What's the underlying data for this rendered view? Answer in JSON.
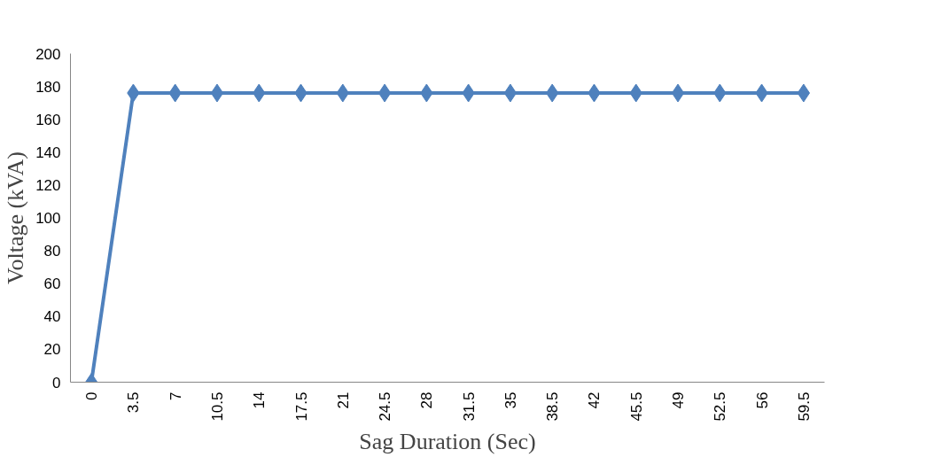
{
  "chart_data": {
    "type": "line",
    "xlabel": "Sag Duration (Sec)",
    "ylabel": "Voltage (kVA)",
    "categories": [
      "0",
      "3.5",
      "7",
      "10.5",
      "14",
      "17.5",
      "21",
      "24.5",
      "28",
      "31.5",
      "35",
      "38.5",
      "42",
      "45.5",
      "49",
      "52.5",
      "56",
      "59.5"
    ],
    "series": [
      {
        "color": "#4f81bd",
        "values": [
          0,
          176,
          176,
          176,
          176,
          176,
          176,
          176,
          176,
          176,
          176,
          176,
          176,
          176,
          176,
          176,
          176,
          176
        ]
      }
    ],
    "ylim": [
      0,
      200
    ],
    "yticks": [
      0,
      20,
      40,
      60,
      80,
      100,
      120,
      140,
      160,
      180,
      200
    ],
    "marker": "diamond",
    "line_style": "solid",
    "grid": false
  }
}
